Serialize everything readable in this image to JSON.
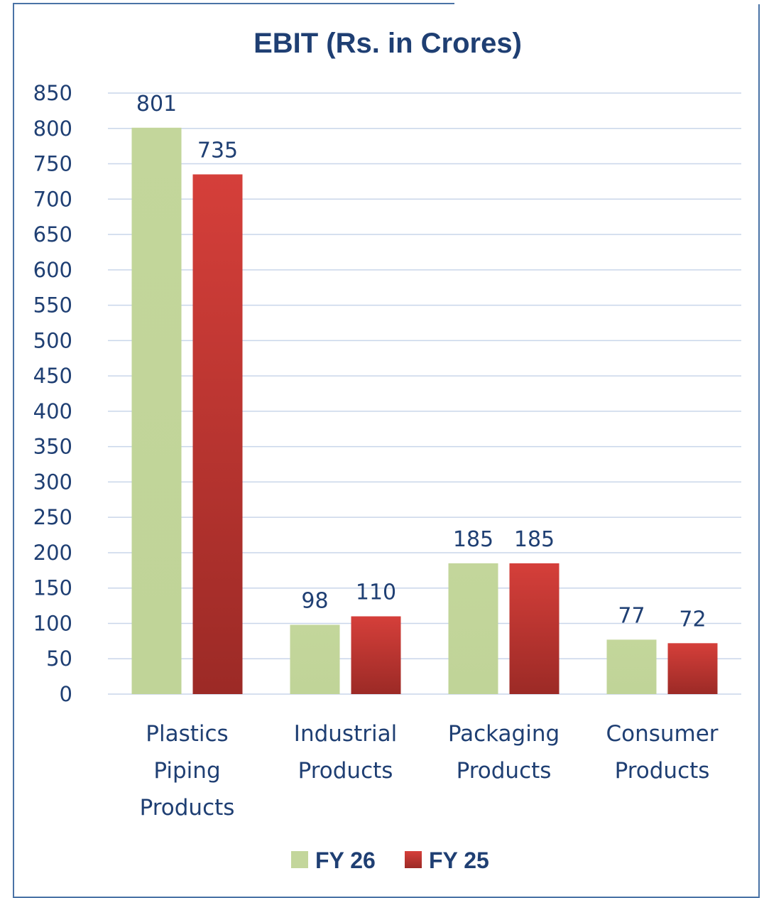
{
  "chart_data": {
    "type": "bar",
    "title": "EBIT (Rs. in Crores)",
    "categories": [
      [
        "Plastics",
        "Piping",
        "Products"
      ],
      [
        "Industrial",
        "Products"
      ],
      [
        "Packaging",
        "Products"
      ],
      [
        "Consumer",
        "Products"
      ]
    ],
    "series": [
      {
        "name": "FY 26",
        "values": [
          801,
          98,
          185,
          77
        ],
        "color": "#c3d69b",
        "colorDark": "#b3c98a"
      },
      {
        "name": "FY 25",
        "values": [
          735,
          110,
          185,
          72
        ],
        "color": "#d03d38",
        "colorDark": "#9e2b27"
      }
    ],
    "ylim": [
      0,
      850
    ],
    "ystep": 50,
    "yticks": [
      "0",
      "50",
      "100",
      "150",
      "200",
      "250",
      "300",
      "350",
      "400",
      "450",
      "500",
      "550",
      "600",
      "650",
      "700",
      "750",
      "800",
      "850"
    ],
    "grid": true,
    "legend_position": "bottom",
    "gridColor": "#c9d6ea",
    "textColor": "#1f3f73",
    "frameColor": "#4a73a6"
  }
}
